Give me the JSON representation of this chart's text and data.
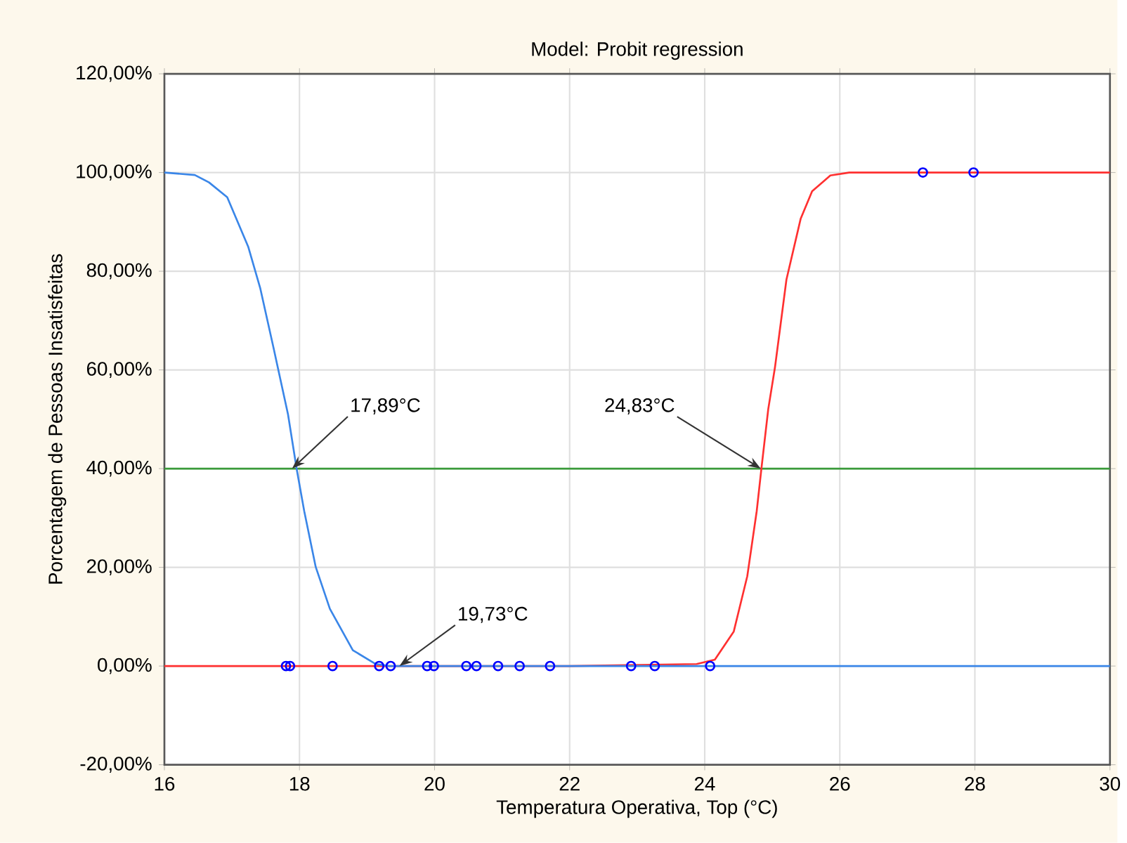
{
  "chart_data": {
    "type": "line",
    "title": "Model: Probit regression",
    "xlabel": "Temperatura Operativa, Top (°C)",
    "ylabel": "Porcentagem de Pessoas Insatisfeitas",
    "xlim": [
      16,
      30
    ],
    "xticks": [
      16,
      18,
      20,
      22,
      24,
      26,
      28,
      30
    ],
    "ylim": [
      -20,
      120
    ],
    "yticks": [
      {
        "value": -20,
        "label": "-20,00%"
      },
      {
        "value": 0,
        "label": "0,00%"
      },
      {
        "value": 20,
        "label": "20,00%"
      },
      {
        "value": 40,
        "label": "40,00%"
      },
      {
        "value": 60,
        "label": "60,00%"
      },
      {
        "value": 80,
        "label": "80,00%"
      },
      {
        "value": 100,
        "label": "100,00%"
      },
      {
        "value": 120,
        "label": "120,00%"
      }
    ],
    "grid": true,
    "line_style": "solid",
    "series": [
      {
        "color": "#ff3030",
        "marker": "none",
        "x": [
          16,
          18,
          20,
          22,
          23.88,
          24.15,
          24.43,
          24.63,
          24.77,
          24.84,
          24.94,
          25.04,
          25.21,
          25.42,
          25.59,
          25.86,
          26.14,
          28,
          30
        ],
        "values": [
          0,
          0,
          0,
          0,
          0.4,
          1.3,
          7,
          18.2,
          31.4,
          40.1,
          52,
          60.5,
          78.3,
          90.6,
          96.2,
          99.4,
          100,
          100,
          100
        ]
      },
      {
        "color": "#3a86e8",
        "marker": "none",
        "x": [
          16,
          16.45,
          16.66,
          16.93,
          17.24,
          17.42,
          17.62,
          17.83,
          17.96,
          18.07,
          18.24,
          18.45,
          18.79,
          19.13,
          19.33,
          20,
          22,
          24,
          26,
          28,
          30
        ],
        "values": [
          100,
          99.5,
          98,
          95,
          85,
          76.5,
          64.2,
          51,
          39.8,
          31.4,
          20.1,
          11.6,
          3.2,
          0.4,
          0,
          0,
          0,
          0,
          0,
          0,
          0
        ]
      },
      {
        "type": "scatter",
        "color": "#0000ff",
        "marker": "circle",
        "x": [
          17.8,
          17.86,
          18.49,
          19.18,
          19.35,
          19.89,
          19.99,
          20.47,
          20.62,
          20.94,
          21.26,
          21.71,
          22.91,
          23.26,
          24.08,
          27.23,
          27.98
        ],
        "values": [
          0,
          0,
          0,
          0,
          0,
          0,
          0,
          0,
          0,
          0,
          0,
          0,
          0,
          0,
          0,
          100,
          100
        ]
      }
    ],
    "ref_lines": [
      {
        "axis": "y",
        "value": 40,
        "color": "#3a9a3a"
      }
    ],
    "annotations": [
      {
        "text": "17,89°C",
        "x": 17.89,
        "y": 40
      },
      {
        "text": "19,73°C",
        "x": 19.48,
        "y": 0
      },
      {
        "text": "24,83°C",
        "x": 24.83,
        "y": 40
      }
    ]
  }
}
